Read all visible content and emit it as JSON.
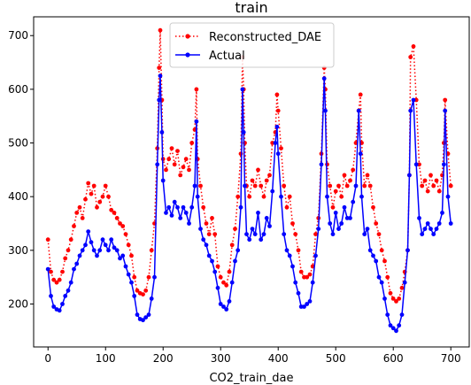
{
  "chart_data": {
    "type": "line",
    "title": "train",
    "xlabel": "CO2_train_dae",
    "ylabel": "",
    "xlim": [
      -25,
      732
    ],
    "ylim": [
      120,
      735
    ],
    "xticks": [
      0,
      100,
      200,
      300,
      400,
      500,
      600,
      700
    ],
    "yticks": [
      200,
      300,
      400,
      500,
      600,
      700
    ],
    "grid": false,
    "legend_position": "top-center",
    "series": [
      {
        "name": "Reconstructed_DAE",
        "color": "#ff0000",
        "style": "dotted",
        "marker": "circle",
        "x": [
          0,
          5,
          10,
          15,
          20,
          25,
          30,
          35,
          40,
          45,
          50,
          55,
          60,
          65,
          70,
          75,
          80,
          85,
          90,
          95,
          100,
          105,
          110,
          115,
          120,
          125,
          130,
          135,
          140,
          145,
          150,
          155,
          160,
          165,
          170,
          175,
          180,
          185,
          190,
          193,
          195,
          198,
          200,
          205,
          210,
          215,
          220,
          225,
          230,
          235,
          240,
          245,
          250,
          255,
          258,
          260,
          265,
          270,
          275,
          280,
          285,
          290,
          295,
          300,
          305,
          310,
          315,
          320,
          325,
          330,
          335,
          338,
          340,
          342,
          345,
          350,
          355,
          360,
          365,
          370,
          375,
          380,
          385,
          390,
          395,
          398,
          400,
          405,
          410,
          415,
          420,
          425,
          430,
          435,
          440,
          445,
          450,
          455,
          460,
          465,
          470,
          475,
          480,
          482,
          485,
          490,
          495,
          500,
          505,
          510,
          515,
          520,
          525,
          530,
          535,
          540,
          543,
          545,
          550,
          555,
          560,
          565,
          570,
          575,
          580,
          585,
          590,
          595,
          600,
          605,
          610,
          615,
          620,
          625,
          628,
          630,
          635,
          640,
          645,
          650,
          655,
          660,
          665,
          670,
          675,
          680,
          685,
          688,
          690,
          695,
          700
        ],
        "values": [
          320,
          260,
          245,
          240,
          245,
          260,
          285,
          300,
          320,
          345,
          370,
          380,
          360,
          395,
          425,
          405,
          420,
          380,
          390,
          400,
          420,
          400,
          375,
          370,
          360,
          350,
          345,
          330,
          310,
          290,
          250,
          225,
          220,
          218,
          225,
          250,
          300,
          350,
          490,
          640,
          710,
          580,
          470,
          450,
          470,
          490,
          460,
          485,
          440,
          455,
          470,
          450,
          500,
          525,
          600,
          470,
          420,
          380,
          350,
          330,
          360,
          330,
          270,
          250,
          240,
          235,
          260,
          310,
          340,
          400,
          480,
          660,
          600,
          500,
          420,
          400,
          430,
          420,
          450,
          420,
          400,
          430,
          440,
          500,
          520,
          590,
          560,
          490,
          420,
          380,
          400,
          350,
          330,
          300,
          260,
          250,
          250,
          255,
          270,
          330,
          360,
          480,
          640,
          600,
          460,
          420,
          380,
          410,
          420,
          400,
          440,
          420,
          430,
          450,
          500,
          560,
          590,
          500,
          420,
          440,
          420,
          380,
          350,
          330,
          300,
          280,
          250,
          220,
          210,
          205,
          210,
          230,
          260,
          300,
          440,
          660,
          680,
          580,
          460,
          420,
          430,
          410,
          440,
          420,
          430,
          410,
          440,
          500,
          580,
          480,
          420
        ]
      },
      {
        "name": "Actual",
        "color": "#0000ff",
        "style": "solid",
        "marker": "circle",
        "x": [
          0,
          5,
          10,
          15,
          20,
          25,
          30,
          35,
          40,
          45,
          50,
          55,
          60,
          65,
          70,
          75,
          80,
          85,
          90,
          95,
          100,
          105,
          110,
          115,
          120,
          125,
          130,
          135,
          140,
          145,
          150,
          155,
          160,
          165,
          170,
          175,
          180,
          185,
          190,
          193,
          195,
          198,
          200,
          205,
          210,
          215,
          220,
          225,
          230,
          235,
          240,
          245,
          250,
          255,
          258,
          260,
          265,
          270,
          275,
          280,
          285,
          290,
          295,
          300,
          305,
          310,
          315,
          320,
          325,
          330,
          335,
          338,
          340,
          342,
          345,
          350,
          355,
          360,
          365,
          370,
          375,
          380,
          385,
          390,
          395,
          398,
          400,
          405,
          410,
          415,
          420,
          425,
          430,
          435,
          440,
          445,
          450,
          455,
          460,
          465,
          470,
          475,
          480,
          482,
          485,
          490,
          495,
          500,
          505,
          510,
          515,
          520,
          525,
          530,
          535,
          540,
          543,
          545,
          550,
          555,
          560,
          565,
          570,
          575,
          580,
          585,
          590,
          595,
          600,
          605,
          610,
          615,
          620,
          625,
          628,
          630,
          635,
          640,
          645,
          650,
          655,
          660,
          665,
          670,
          675,
          680,
          685,
          688,
          690,
          695,
          700
        ],
        "values": [
          265,
          215,
          195,
          190,
          188,
          200,
          215,
          225,
          240,
          265,
          275,
          290,
          300,
          310,
          335,
          315,
          300,
          290,
          300,
          320,
          310,
          300,
          320,
          305,
          300,
          285,
          290,
          270,
          255,
          240,
          215,
          180,
          172,
          170,
          175,
          180,
          210,
          250,
          460,
          580,
          625,
          520,
          430,
          370,
          380,
          365,
          390,
          380,
          360,
          380,
          370,
          350,
          380,
          420,
          540,
          400,
          340,
          320,
          310,
          290,
          280,
          260,
          230,
          200,
          195,
          190,
          205,
          240,
          280,
          300,
          380,
          600,
          520,
          420,
          330,
          320,
          340,
          330,
          370,
          320,
          330,
          360,
          345,
          410,
          500,
          530,
          480,
          400,
          330,
          300,
          290,
          270,
          240,
          220,
          195,
          195,
          200,
          205,
          240,
          290,
          340,
          460,
          620,
          560,
          400,
          350,
          330,
          370,
          340,
          350,
          380,
          360,
          360,
          390,
          420,
          560,
          480,
          400,
          330,
          340,
          300,
          290,
          280,
          250,
          240,
          210,
          180,
          160,
          155,
          150,
          160,
          180,
          240,
          300,
          440,
          560,
          580,
          460,
          360,
          330,
          340,
          350,
          340,
          330,
          340,
          350,
          370,
          460,
          560,
          400,
          350
        ]
      }
    ]
  }
}
